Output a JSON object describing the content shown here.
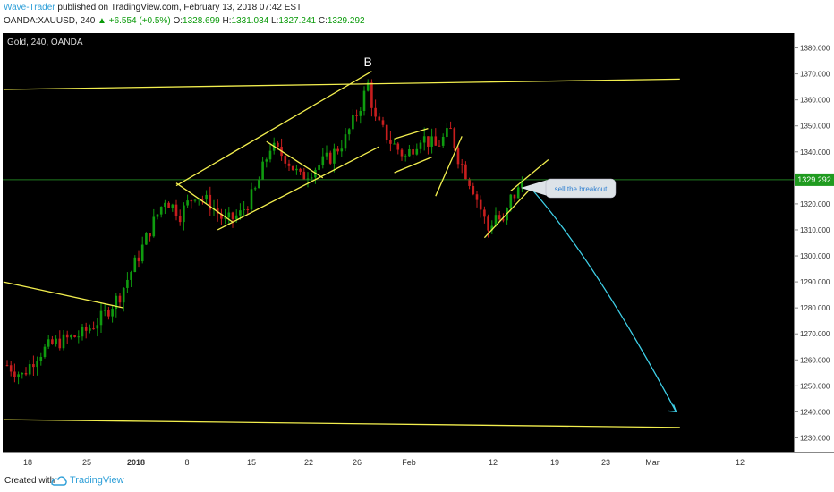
{
  "header": {
    "author": "Wave-Trader",
    "published_text": "published on TradingView.com, February 13, 2018 07:42 EST",
    "symbol": "OANDA:XAUUSD, 240",
    "change": "▲ +6.554 (+0.5%)",
    "open_label": "O:",
    "open": "1328.699",
    "high_label": "H:",
    "high": "1331.034",
    "low_label": "L:",
    "low": "1327.241",
    "close_label": "C:",
    "close": "1329.292"
  },
  "footer": {
    "created_with": "Created with",
    "brand": "TradingView"
  },
  "colors": {
    "background": "#000000",
    "up_candle": "#0f9b0f",
    "down_candle": "#c81e1e",
    "trendline": "#f2ee4e",
    "projection": "#3fd0e8",
    "price_line": "#1f7a1f",
    "axis_text": "#333333"
  },
  "chart_data": {
    "type": "candlestick",
    "title": "Gold, 240, OANDA",
    "y_axis": {
      "min": 1225,
      "max": 1385,
      "position": "right",
      "ticks": [
        1380,
        1370,
        1360,
        1350,
        1340,
        1330,
        1320,
        1310,
        1300,
        1290,
        1280,
        1270,
        1260,
        1250,
        1240,
        1230
      ],
      "tick_labels": [
        "1380.000",
        "1370.000",
        "1360.000",
        "1350.000",
        "1340.000",
        "1330.000",
        "1320.000",
        "1310.000",
        "1300.000",
        "1290.000",
        "1280.000",
        "1270.000",
        "1260.000",
        "1250.000",
        "1240.000",
        "1230.000"
      ]
    },
    "x_axis": {
      "tick_labels": [
        "18",
        "25",
        "2018",
        "8",
        "15",
        "22",
        "26",
        "Feb",
        "12",
        "19",
        "23",
        "Mar",
        "12"
      ]
    },
    "last_price": {
      "value": 1329.292,
      "label": "1329.292"
    },
    "wave_label": "B",
    "callout": "sell the breakout",
    "price_path": [
      [
        0,
        1258
      ],
      [
        4,
        1254
      ],
      [
        8,
        1262
      ],
      [
        12,
        1266
      ],
      [
        16,
        1268
      ],
      [
        20,
        1270
      ],
      [
        25,
        1276
      ],
      [
        30,
        1285
      ],
      [
        35,
        1300
      ],
      [
        38,
        1310
      ],
      [
        42,
        1322
      ],
      [
        46,
        1316
      ],
      [
        50,
        1324
      ],
      [
        54,
        1320
      ],
      [
        58,
        1313
      ],
      [
        62,
        1316
      ],
      [
        66,
        1325
      ],
      [
        70,
        1342
      ],
      [
        74,
        1338
      ],
      [
        78,
        1330
      ],
      [
        82,
        1334
      ],
      [
        86,
        1338
      ],
      [
        90,
        1345
      ],
      [
        94,
        1358
      ],
      [
        96,
        1366
      ],
      [
        98,
        1352
      ],
      [
        102,
        1344
      ],
      [
        106,
        1338
      ],
      [
        110,
        1346
      ],
      [
        114,
        1342
      ],
      [
        118,
        1348
      ],
      [
        120,
        1338
      ],
      [
        122,
        1332
      ],
      [
        124,
        1326
      ],
      [
        126,
        1318
      ],
      [
        128,
        1310
      ],
      [
        130,
        1316
      ],
      [
        132,
        1312
      ],
      [
        134,
        1322
      ],
      [
        136,
        1325
      ],
      [
        137,
        1329
      ]
    ],
    "candle_count": 138,
    "trendlines": [
      {
        "name": "resistance-line",
        "from": [
          -1,
          1364
        ],
        "to": [
          179,
          1368
        ]
      },
      {
        "name": "support-line",
        "from": [
          -1,
          1237
        ],
        "to": [
          179,
          1234
        ]
      },
      {
        "name": "early-downtrend-line",
        "from": [
          -1,
          1290
        ],
        "to": [
          31,
          1280
        ]
      },
      {
        "name": "channel-upper",
        "from": [
          45,
          1327
        ],
        "to": [
          97,
          1371
        ]
      },
      {
        "name": "channel-lower",
        "from": [
          56,
          1310
        ],
        "to": [
          99,
          1342
        ]
      },
      {
        "name": "flag1-top",
        "from": [
          45,
          1328
        ],
        "to": [
          60,
          1313
        ]
      },
      {
        "name": "flag1-bottom",
        "from": [
          69,
          1344
        ],
        "to": [
          84,
          1330
        ]
      },
      {
        "name": "flag2-top",
        "from": [
          103,
          1345
        ],
        "to": [
          112,
          1349
        ]
      },
      {
        "name": "flag2-bottom",
        "from": [
          103,
          1332
        ],
        "to": [
          113,
          1338
        ]
      },
      {
        "name": "flag3-line",
        "from": [
          114,
          1323
        ],
        "to": [
          121,
          1346
        ]
      },
      {
        "name": "wedge-lower",
        "from": [
          127,
          1307
        ],
        "to": [
          140,
          1327
        ]
      },
      {
        "name": "wedge-upper",
        "from": [
          134,
          1325
        ],
        "to": [
          144,
          1337
        ]
      }
    ],
    "projection": [
      [
        140,
        1325
      ],
      [
        152,
        1305
      ],
      [
        165,
        1275
      ],
      [
        178,
        1240
      ]
    ],
    "legend": "none",
    "grid": false
  }
}
